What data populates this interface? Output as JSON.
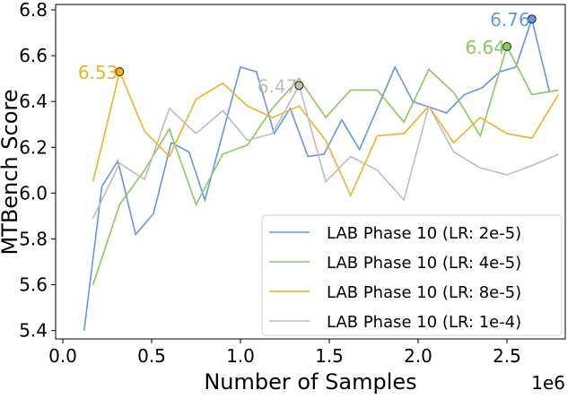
{
  "chart_data": {
    "type": "line",
    "title": "",
    "xlabel": "Number of Samples",
    "ylabel": "MTBench Score",
    "x_offset_label": "1e6",
    "xlim": [
      -0.04,
      2.83
    ],
    "ylim": [
      5.37,
      6.82
    ],
    "xticks": [
      0.0,
      0.5,
      1.0,
      1.5,
      2.0,
      2.5
    ],
    "xtick_labels": [
      "0.0",
      "0.5",
      "1.0",
      "1.5",
      "2.0",
      "2.5"
    ],
    "yticks": [
      5.4,
      5.6,
      5.8,
      6.0,
      6.2,
      6.4,
      6.6,
      6.8
    ],
    "ytick_labels": [
      "5.4",
      "5.6",
      "5.8",
      "6.0",
      "6.2",
      "6.4",
      "6.6",
      "6.8"
    ],
    "grid": false,
    "legend_position": "lower-right",
    "series": [
      {
        "name": "LAB Phase 10 (LR: 2e-5)",
        "color": "#6495ed",
        "x": [
          0.12,
          0.22,
          0.31,
          0.41,
          0.51,
          0.61,
          0.71,
          0.8,
          1.0,
          1.09,
          1.19,
          1.28,
          1.38,
          1.47,
          1.57,
          1.67,
          1.87,
          1.97,
          2.16,
          2.26,
          2.36,
          2.46,
          2.55,
          2.64,
          2.74
        ],
        "y": [
          5.4,
          6.03,
          6.14,
          5.82,
          5.91,
          6.22,
          6.18,
          5.97,
          6.55,
          6.53,
          6.26,
          6.37,
          6.16,
          6.17,
          6.32,
          6.19,
          6.55,
          6.4,
          6.35,
          6.43,
          6.46,
          6.53,
          6.55,
          6.76,
          6.44
        ],
        "best": {
          "x": 2.64,
          "y": 6.76,
          "label": "6.76"
        }
      },
      {
        "name": "LAB Phase 10 (LR: 4e-5)",
        "color": "#84cc5c",
        "x": [
          0.17,
          0.32,
          0.46,
          0.6,
          0.75,
          0.9,
          1.04,
          1.18,
          1.33,
          1.48,
          1.62,
          1.77,
          1.92,
          2.06,
          2.2,
          2.35,
          2.5,
          2.64,
          2.79
        ],
        "y": [
          5.6,
          5.95,
          6.1,
          6.28,
          5.95,
          6.17,
          6.21,
          6.37,
          6.5,
          6.33,
          6.45,
          6.45,
          6.31,
          6.54,
          6.44,
          6.25,
          6.64,
          6.43,
          6.45
        ],
        "best": {
          "x": 2.5,
          "y": 6.64,
          "label": "6.64"
        }
      },
      {
        "name": "LAB Phase 10 (LR: 8e-5)",
        "color": "#f5b21c",
        "x": [
          0.17,
          0.32,
          0.46,
          0.6,
          0.75,
          0.9,
          1.04,
          1.18,
          1.33,
          1.48,
          1.62,
          1.77,
          1.92,
          2.06,
          2.2,
          2.35,
          2.5,
          2.64,
          2.79
        ],
        "y": [
          6.05,
          6.53,
          6.27,
          6.16,
          6.41,
          6.48,
          6.38,
          6.33,
          6.38,
          6.23,
          5.99,
          6.25,
          6.26,
          6.38,
          6.22,
          6.33,
          6.26,
          6.24,
          6.43
        ],
        "best": {
          "x": 0.32,
          "y": 6.53,
          "label": "6.53"
        }
      },
      {
        "name": "LAB Phase 10 (LR: 1e-4)",
        "color": "#bdbdbd",
        "x": [
          0.17,
          0.32,
          0.46,
          0.6,
          0.75,
          0.9,
          1.04,
          1.18,
          1.33,
          1.48,
          1.62,
          1.77,
          1.92,
          2.06,
          2.2,
          2.35,
          2.5,
          2.64,
          2.79
        ],
        "y": [
          5.89,
          6.13,
          6.06,
          6.37,
          6.26,
          6.36,
          6.23,
          6.26,
          6.47,
          6.05,
          6.16,
          6.1,
          5.97,
          6.38,
          6.18,
          6.11,
          6.08,
          6.12,
          6.17
        ],
        "best": {
          "x": 1.33,
          "y": 6.47,
          "label": "6.47"
        }
      }
    ]
  }
}
